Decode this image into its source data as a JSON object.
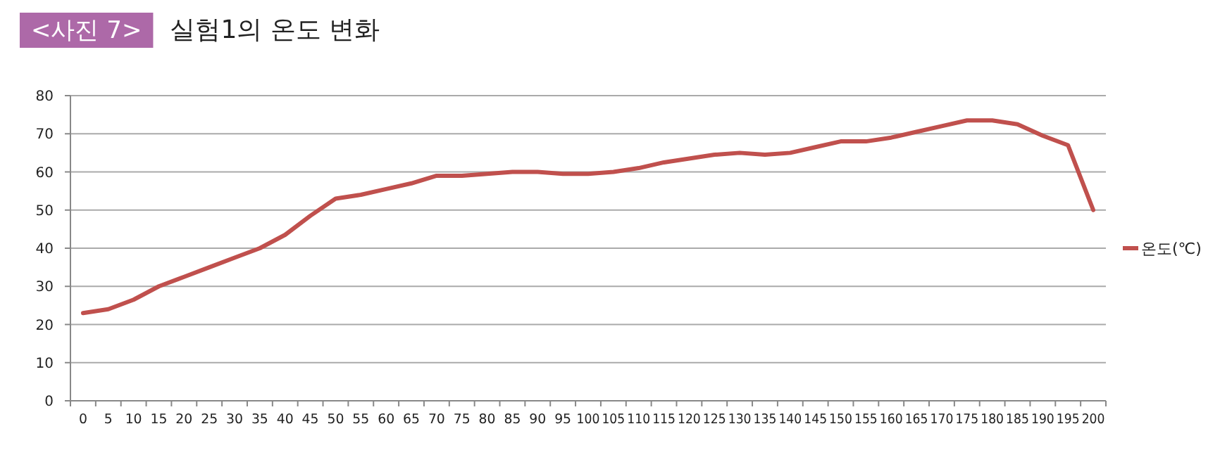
{
  "chart_data": {
    "type": "line",
    "title": "실험1의 온도 변화",
    "annotations": [
      "<사진 7>"
    ],
    "categories": [
      "0",
      "5",
      "10",
      "15",
      "20",
      "25",
      "30",
      "35",
      "40",
      "45",
      "50",
      "55",
      "60",
      "65",
      "70",
      "75",
      "80",
      "85",
      "90",
      "95",
      "100",
      "105",
      "110",
      "115",
      "120",
      "125",
      "130",
      "135",
      "140",
      "145",
      "150",
      "155",
      "160",
      "165",
      "170",
      "175",
      "180",
      "185",
      "190",
      "195",
      "200"
    ],
    "series": [
      {
        "name": "온도(℃)",
        "color": "#c0504d",
        "values": [
          23,
          24,
          26.5,
          30,
          32.5,
          35,
          37.5,
          40,
          43.5,
          48.5,
          53,
          54,
          55.5,
          57,
          59,
          59,
          59.5,
          60,
          60,
          59.5,
          59.5,
          60,
          61,
          62.5,
          63.5,
          64.5,
          65,
          64.5,
          65,
          66.5,
          68,
          68,
          69,
          70.5,
          72,
          73.5,
          73.5,
          72.5,
          69.5,
          67,
          50
        ]
      }
    ],
    "ylim": [
      0,
      80
    ],
    "yticks": [
      0,
      10,
      20,
      30,
      40,
      50,
      60,
      70,
      80
    ],
    "grid": "y",
    "legend": "right",
    "marker": "none",
    "line_style": "solid"
  }
}
